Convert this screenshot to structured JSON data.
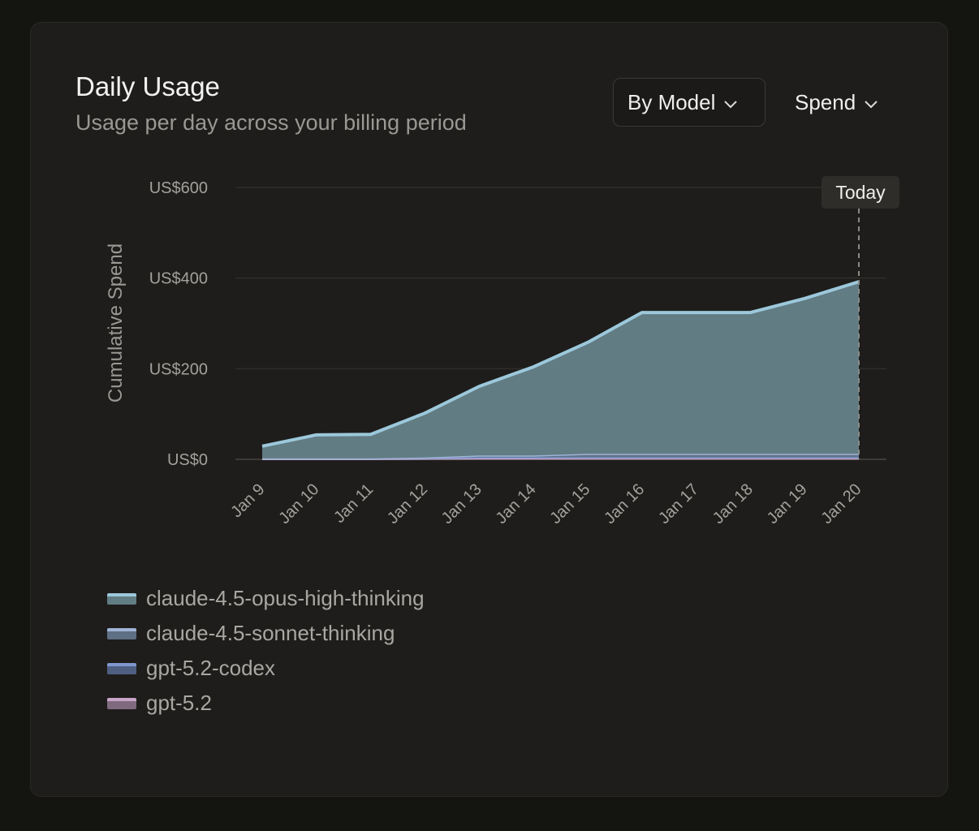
{
  "header": {
    "title": "Daily Usage",
    "subtitle": "Usage per day across your billing period"
  },
  "controls": {
    "group_by": "By Model",
    "metric": "Spend"
  },
  "chart_data": {
    "type": "area",
    "stacked": true,
    "ylabel": "Cumulative Spend",
    "ylim": [
      0,
      600
    ],
    "yticks": [
      {
        "v": 0,
        "label": "US$0"
      },
      {
        "v": 200,
        "label": "US$200"
      },
      {
        "v": 400,
        "label": "US$400"
      },
      {
        "v": 600,
        "label": "US$600"
      }
    ],
    "categories": [
      "Jan 9",
      "Jan 10",
      "Jan 11",
      "Jan 12",
      "Jan 13",
      "Jan 14",
      "Jan 15",
      "Jan 16",
      "Jan 17",
      "Jan 18",
      "Jan 19",
      "Jan 20"
    ],
    "marker": {
      "label": "Today",
      "category": "Jan 20"
    },
    "legend_position": "bottom-left",
    "series": [
      {
        "name": "gpt-5.2",
        "line": "#c9a6c8",
        "fill": "#7f6a80",
        "values": [
          1,
          1,
          1,
          1.5,
          2,
          2,
          2,
          2,
          2,
          2,
          2,
          2
        ]
      },
      {
        "name": "gpt-5.2-codex",
        "line": "#7f97cf",
        "fill": "#4f5f82",
        "values": [
          1,
          1,
          1,
          1.5,
          2.5,
          2.5,
          3,
          3,
          3,
          3,
          3,
          3
        ]
      },
      {
        "name": "claude-4.5-sonnet-thinking",
        "line": "#9fb4d6",
        "fill": "#5f6f84",
        "values": [
          0,
          0,
          0,
          1,
          4,
          4,
          7,
          7,
          7,
          7,
          7,
          7
        ]
      },
      {
        "name": "claude-4.5-opus-high-thinking",
        "line": "#9cc8db",
        "fill": "#627c84",
        "values": [
          27,
          52,
          53,
          98,
          152.5,
          195.5,
          246,
          312,
          312,
          312,
          343,
          380
        ]
      }
    ]
  }
}
